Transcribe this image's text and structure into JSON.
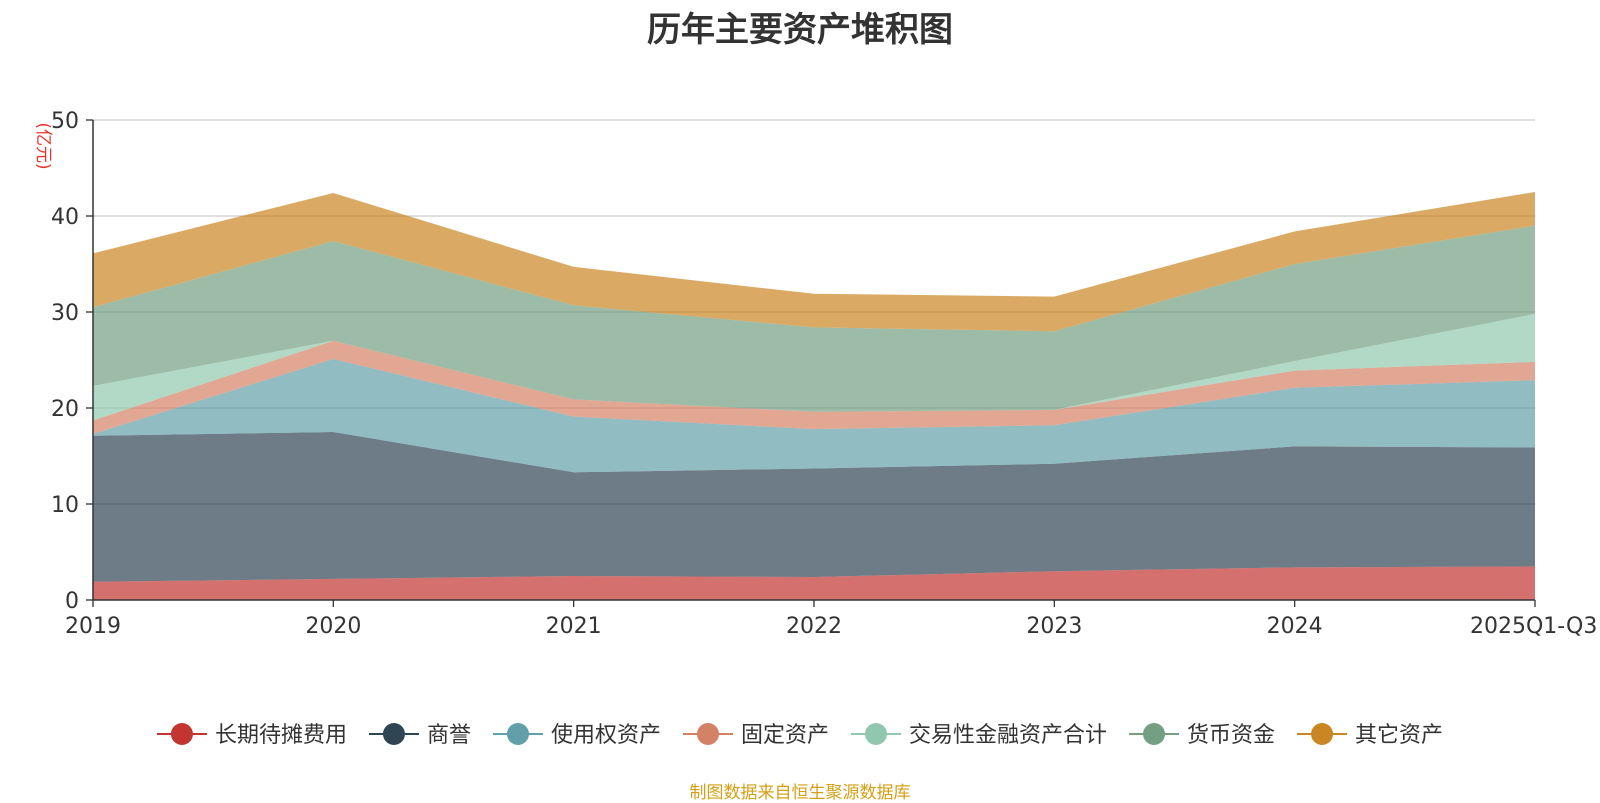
{
  "chart_data": {
    "type": "area",
    "stacked": true,
    "title": "历年主要资产堆积图",
    "ylabel": "(亿元)",
    "xlabel": "",
    "ylim": [
      0,
      50
    ],
    "yticks": [
      0,
      10,
      20,
      30,
      40,
      50
    ],
    "categories": [
      "2019",
      "2020",
      "2021",
      "2022",
      "2023",
      "2024",
      "2025Q1-Q3"
    ],
    "grid": true,
    "legend_position": "bottom",
    "series": [
      {
        "name": "长期待摊费用",
        "color": "#c23531",
        "values": [
          1.9,
          2.2,
          2.5,
          2.4,
          3.0,
          3.4,
          3.5
        ]
      },
      {
        "name": "商誉",
        "color": "#2f4554",
        "values": [
          15.2,
          15.3,
          10.8,
          11.3,
          11.2,
          12.6,
          12.4
        ]
      },
      {
        "name": "使用权资产",
        "color": "#61a0a8",
        "values": [
          0.2,
          7.6,
          5.8,
          4.1,
          4.0,
          6.1,
          7.0
        ]
      },
      {
        "name": "固定资产",
        "color": "#d48265",
        "values": [
          1.4,
          1.9,
          1.8,
          1.8,
          1.6,
          1.8,
          1.9
        ]
      },
      {
        "name": "交易性金融资产合计",
        "color": "#91c7ae",
        "values": [
          3.6,
          0.0,
          0.0,
          0.0,
          0.0,
          1.0,
          5.0
        ]
      },
      {
        "name": "货币资金",
        "color": "#749f83",
        "values": [
          8.2,
          10.4,
          9.8,
          8.8,
          8.2,
          10.1,
          9.2
        ]
      },
      {
        "name": "其它资产",
        "color": "#ca8622",
        "values": [
          5.6,
          5.0,
          4.0,
          3.5,
          3.6,
          3.4,
          3.5
        ]
      }
    ],
    "source": "制图数据来自恒生聚源数据库"
  },
  "colors": {
    "title": "#333333",
    "axis": "#333333",
    "grid": "#cccccc",
    "ylabel": "#e8332a",
    "source": "#d4a017"
  }
}
